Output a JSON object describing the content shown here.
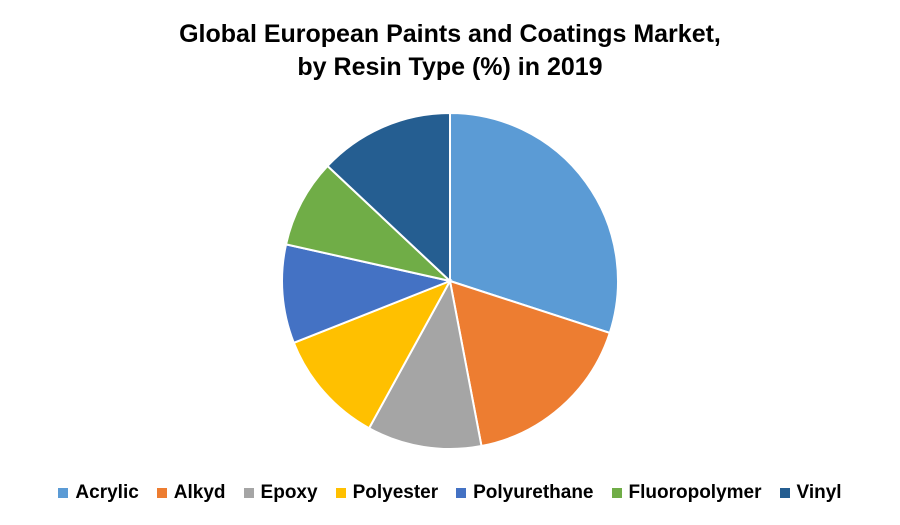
{
  "chart_data": {
    "type": "pie",
    "title": "Global European Paints and Coatings  Market,\nby Resin Type (%) in 2019",
    "legend_position": "bottom",
    "categories": [
      "Acrylic",
      "Alkyd",
      "Epoxy",
      "Polyester",
      "Polyurethane",
      "Fluoropolymer",
      "Vinyl"
    ],
    "values": [
      30,
      17,
      11,
      11,
      9.5,
      8.5,
      13
    ],
    "colors": [
      "#5B9BD5",
      "#ED7D31",
      "#A5A5A5",
      "#FFC000",
      "#4472C4",
      "#70AD47",
      "#255E91"
    ]
  }
}
